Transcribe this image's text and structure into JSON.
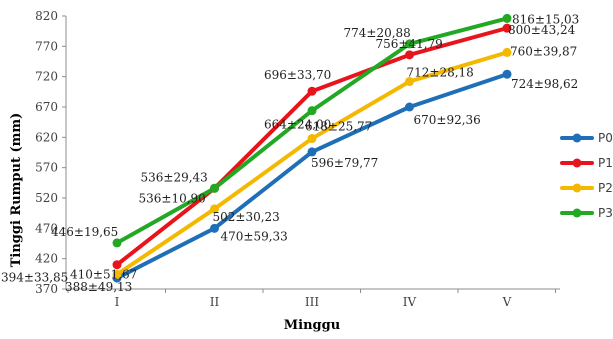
{
  "chart_data": {
    "type": "line",
    "title": "",
    "xlabel": "Minggu",
    "ylabel": "Tinggi Rumput (mm)",
    "categories": [
      "I",
      "II",
      "III",
      "IV",
      "V"
    ],
    "ylim": [
      370,
      820
    ],
    "yticks": [
      370,
      420,
      470,
      520,
      570,
      620,
      670,
      720,
      770,
      820
    ],
    "grid": false,
    "legend_position": "right",
    "series": [
      {
        "name": "P0",
        "color": "#1F6FB8",
        "values": [
          388,
          470,
          596,
          670,
          724
        ],
        "labels": [
          "388±49,13",
          "470±59,33",
          "596±79,77",
          "670±92,36",
          "724±98,62"
        ]
      },
      {
        "name": "P1",
        "color": "#E8141C",
        "values": [
          410,
          536,
          696,
          756,
          800
        ],
        "labels": [
          "410±51,67",
          "536±10,90",
          "696±33,70",
          "756±41,79",
          "800±43,24"
        ]
      },
      {
        "name": "P2",
        "color": "#F5B800",
        "values": [
          394,
          502,
          618,
          712,
          760
        ],
        "labels": [
          "394±33,85",
          "502±30,23",
          "618±25,77",
          "712±28,18",
          "760±39,87"
        ]
      },
      {
        "name": "P3",
        "color": "#22A822",
        "values": [
          446,
          536,
          664,
          774,
          816
        ],
        "labels": [
          "446±19,65",
          "536±29,43",
          "664±24,00",
          "774±20,88",
          "816±15,03"
        ]
      }
    ]
  }
}
